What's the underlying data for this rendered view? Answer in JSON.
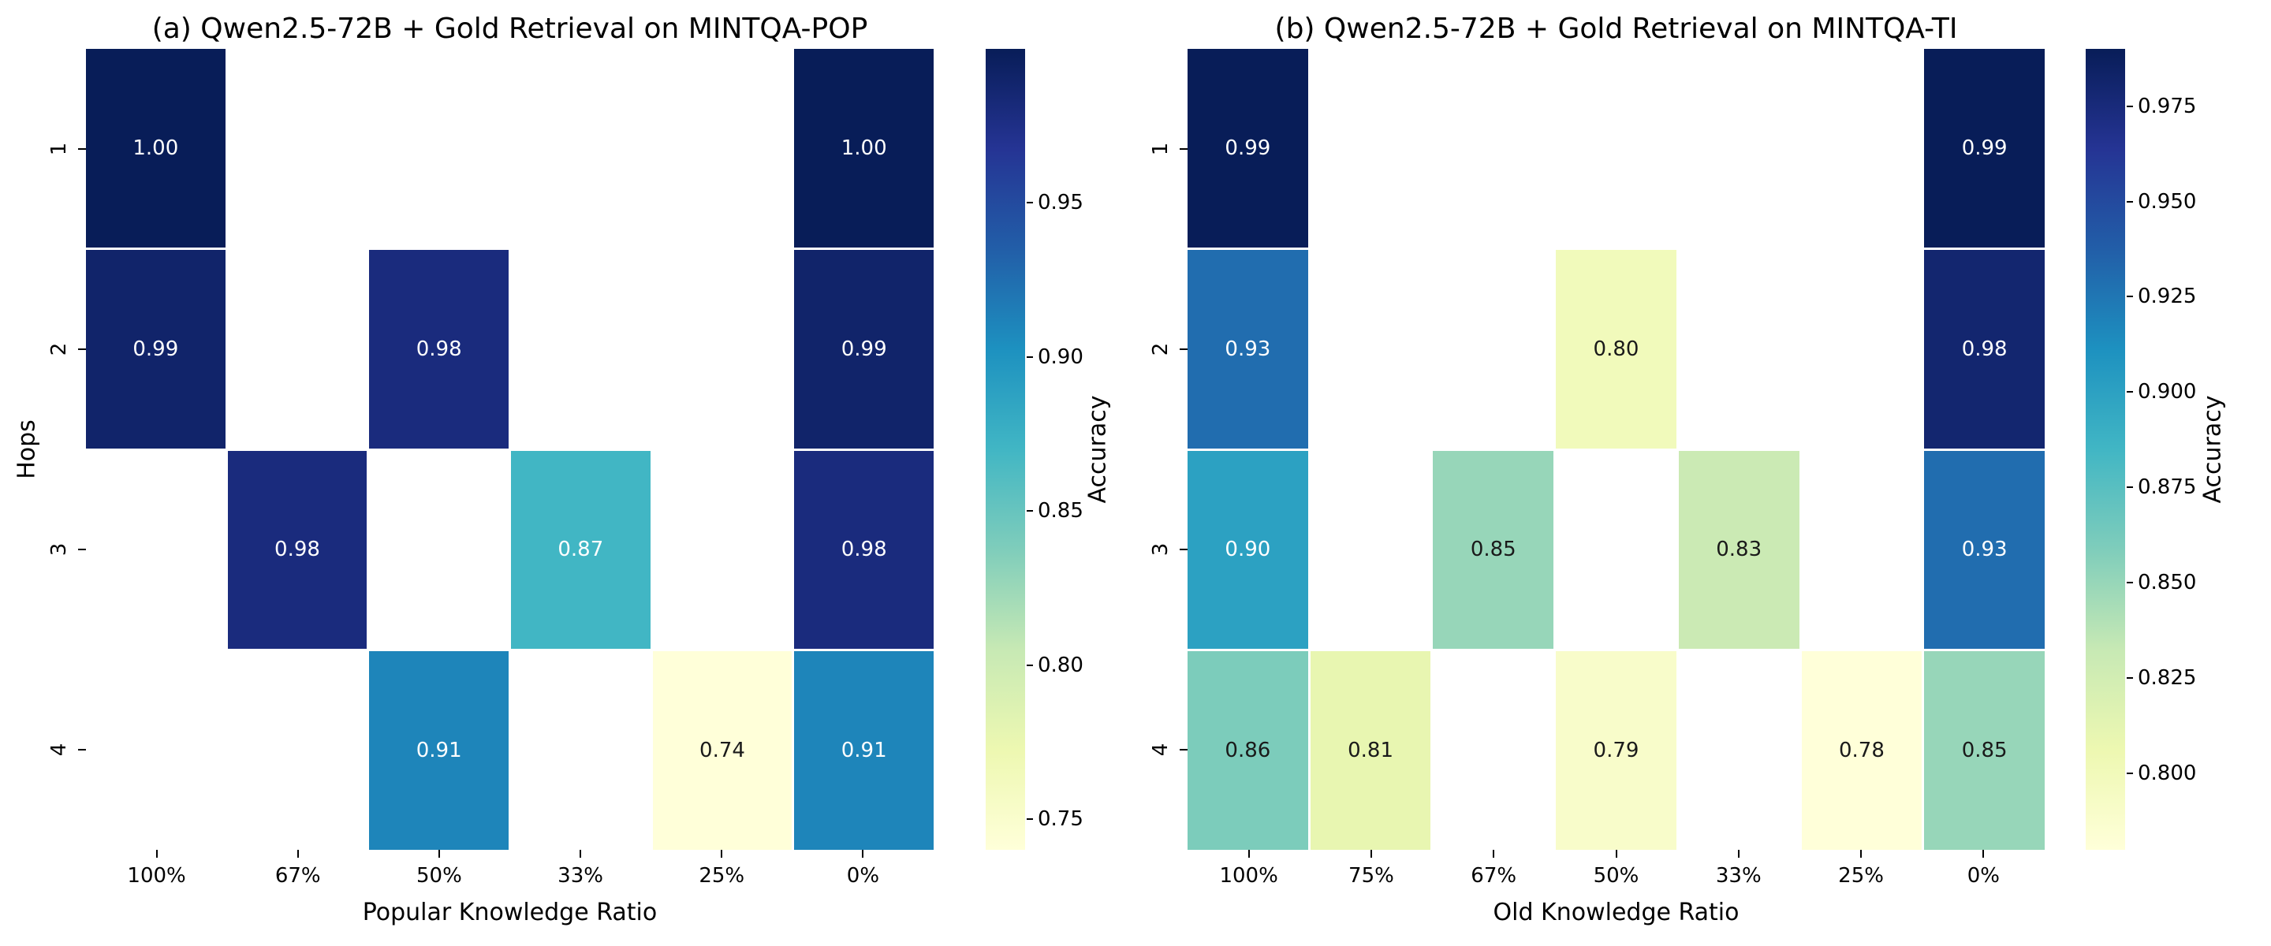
{
  "figure": {
    "background": "#ffffff",
    "text_color": "#000000",
    "colormap": {
      "name": "YlGnBu",
      "stops": [
        "#ffffd9",
        "#edf8b1",
        "#c7e9b4",
        "#7fcdbb",
        "#41b6c4",
        "#1d91c0",
        "#225ea8",
        "#253494",
        "#081d58"
      ]
    },
    "annotation_text_light": "#ffffff",
    "annotation_text_dark": "#1a1a1a"
  },
  "chart_data": [
    {
      "type": "heatmap",
      "panel": "a",
      "title": "(a) Qwen2.5-72B + Gold Retrieval on MINTQA-POP",
      "xlabel": "Popular Knowledge Ratio",
      "ylabel": "Hops",
      "x_ticklabels": [
        "100%",
        "67%",
        "50%",
        "33%",
        "25%",
        "0%"
      ],
      "y_ticklabels": [
        "1",
        "2",
        "3",
        "4"
      ],
      "values": [
        [
          1.0,
          null,
          null,
          null,
          null,
          1.0
        ],
        [
          0.99,
          null,
          0.98,
          null,
          null,
          0.99
        ],
        [
          null,
          0.98,
          null,
          0.87,
          null,
          0.98
        ],
        [
          null,
          null,
          0.91,
          null,
          0.74,
          0.91
        ]
      ],
      "value_decimals": 2,
      "vmin": 0.74,
      "vmax": 1.0,
      "grid": false,
      "legend_position": "none",
      "colorbar": {
        "position": "right",
        "label": "Accuracy",
        "ticks": [
          {
            "value": 0.95,
            "label": "0.95"
          },
          {
            "value": 0.9,
            "label": "0.90"
          },
          {
            "value": 0.85,
            "label": "0.85"
          },
          {
            "value": 0.8,
            "label": "0.80"
          },
          {
            "value": 0.75,
            "label": "0.75"
          }
        ]
      }
    },
    {
      "type": "heatmap",
      "panel": "b",
      "title": "(b) Qwen2.5-72B + Gold Retrieval on MINTQA-TI",
      "xlabel": "Old Knowledge Ratio",
      "ylabel": "",
      "x_ticklabels": [
        "100%",
        "75%",
        "67%",
        "50%",
        "33%",
        "25%",
        "0%"
      ],
      "y_ticklabels": [
        "1",
        "2",
        "3",
        "4"
      ],
      "values": [
        [
          0.99,
          null,
          null,
          null,
          null,
          null,
          0.99
        ],
        [
          0.93,
          null,
          null,
          0.8,
          null,
          null,
          0.98
        ],
        [
          0.9,
          null,
          0.85,
          null,
          0.83,
          null,
          0.93
        ],
        [
          0.86,
          0.81,
          null,
          0.79,
          null,
          0.78,
          0.85
        ]
      ],
      "value_decimals": 2,
      "vmin": 0.78,
      "vmax": 0.99,
      "grid": false,
      "legend_position": "none",
      "colorbar": {
        "position": "right",
        "label": "Accuracy",
        "ticks": [
          {
            "value": 0.975,
            "label": "0.975"
          },
          {
            "value": 0.95,
            "label": "0.950"
          },
          {
            "value": 0.925,
            "label": "0.925"
          },
          {
            "value": 0.9,
            "label": "0.900"
          },
          {
            "value": 0.875,
            "label": "0.875"
          },
          {
            "value": 0.85,
            "label": "0.850"
          },
          {
            "value": 0.825,
            "label": "0.825"
          },
          {
            "value": 0.8,
            "label": "0.800"
          }
        ]
      }
    }
  ]
}
